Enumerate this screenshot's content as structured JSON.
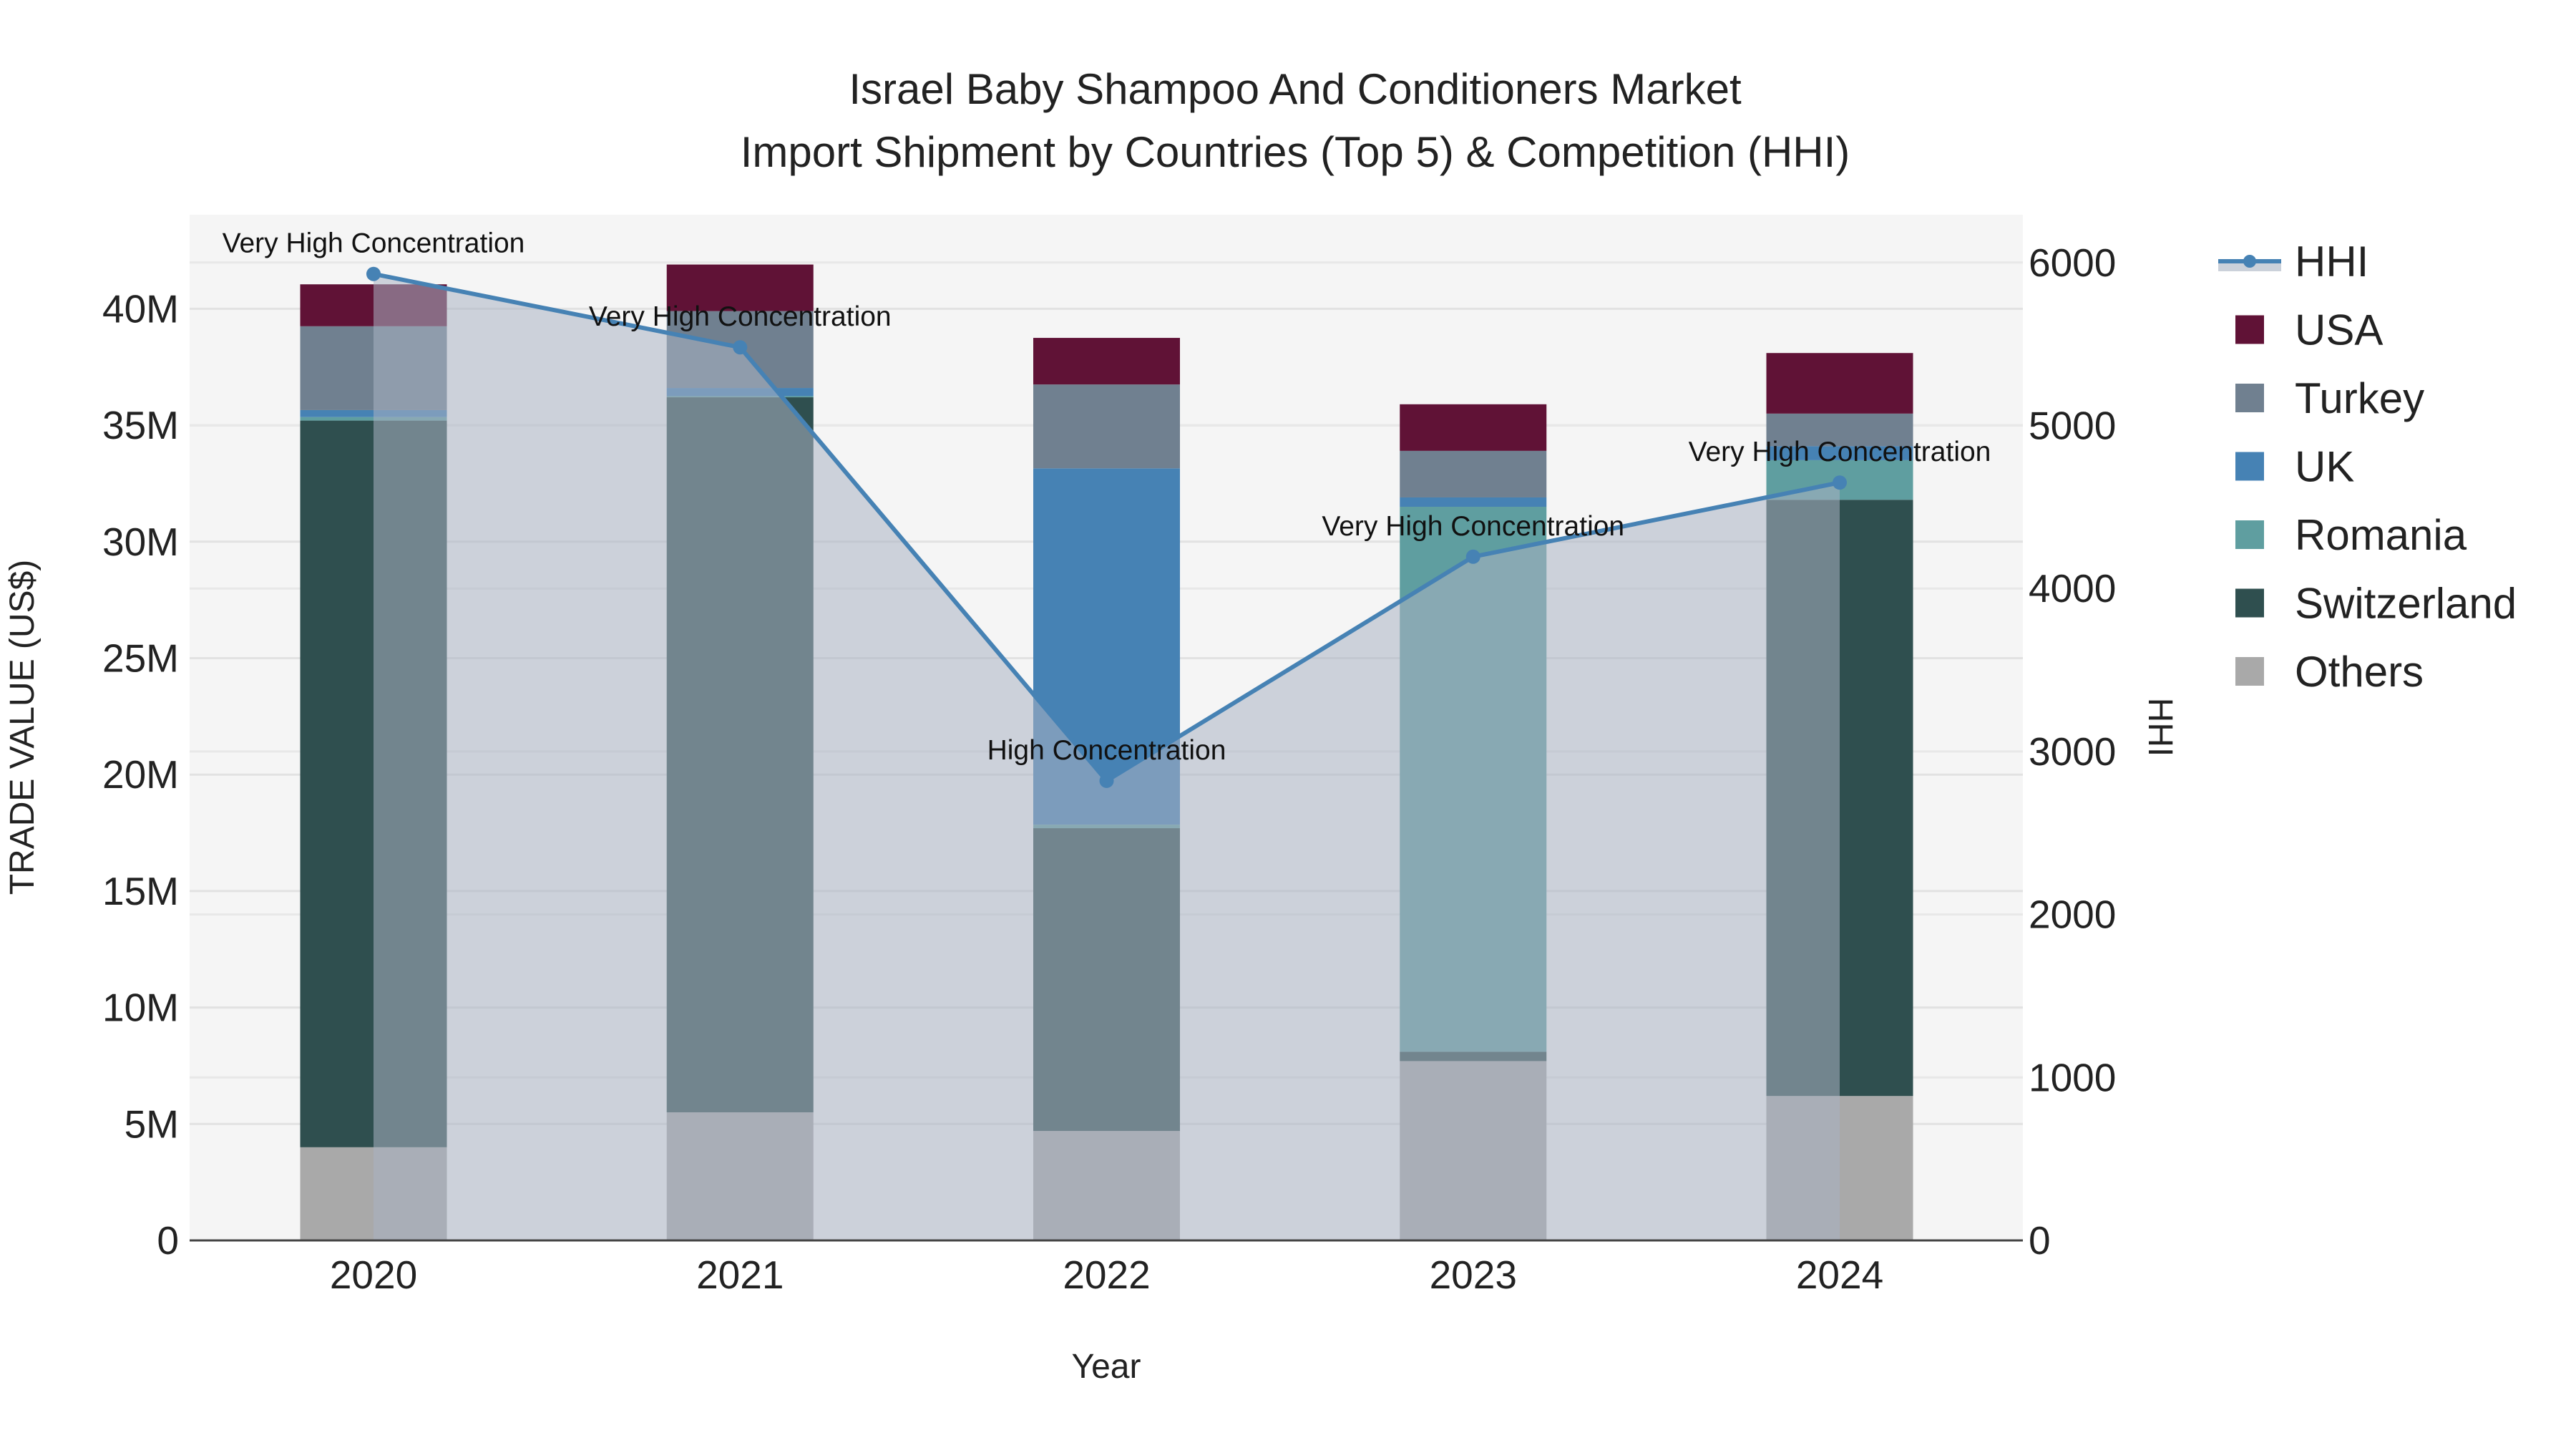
{
  "chart_data": {
    "type": "bar",
    "title": "Israel Baby Shampoo And Conditioners Market",
    "subtitle": "Import Shipment by Countries (Top 5) & Competition (HHI)",
    "xlabel": "Year",
    "ylabel": "TRADE VALUE (US$)",
    "y2label": "HHI",
    "categories": [
      "2020",
      "2021",
      "2022",
      "2023",
      "2024"
    ],
    "ylim": [
      0,
      44000000
    ],
    "y2lim": [
      0,
      6300
    ],
    "yticks": [
      0,
      5000000,
      10000000,
      15000000,
      20000000,
      25000000,
      30000000,
      35000000,
      40000000
    ],
    "ytick_labels": [
      "0",
      "5M",
      "10M",
      "15M",
      "20M",
      "25M",
      "30M",
      "35M",
      "40M"
    ],
    "y2ticks": [
      0,
      1000,
      2000,
      3000,
      4000,
      5000,
      6000
    ],
    "y2tick_labels": [
      "0",
      "1000",
      "2000",
      "3000",
      "4000",
      "5000",
      "6000"
    ],
    "grid": true,
    "legend_position": "right",
    "series": [
      {
        "name": "Others",
        "color": "#a9a9a9",
        "values": [
          4000000,
          5500000,
          4700000,
          7700000,
          6200000
        ]
      },
      {
        "name": "Switzerland",
        "color": "#2f4f4f",
        "values": [
          31200000,
          30700000,
          13000000,
          400000,
          25600000
        ]
      },
      {
        "name": "Romania",
        "color": "#5f9ea0",
        "values": [
          150000,
          50000,
          150000,
          23400000,
          1700000
        ]
      },
      {
        "name": "UK",
        "color": "#4682b4",
        "values": [
          300000,
          350000,
          15300000,
          400000,
          600000
        ]
      },
      {
        "name": "Turkey",
        "color": "#708090",
        "values": [
          3600000,
          3300000,
          3600000,
          2000000,
          1400000
        ]
      },
      {
        "name": "USA",
        "color": "#601236",
        "values": [
          1800000,
          2000000,
          2000000,
          2000000,
          2600000
        ]
      }
    ],
    "hhi": {
      "name": "HHI",
      "color": "#4682b4",
      "values": [
        5930,
        5480,
        2820,
        4195,
        4650
      ],
      "annotations": [
        "Very High Concentration",
        "Very High Concentration",
        "High Concentration",
        "Very High Concentration",
        "Very High Concentration"
      ]
    },
    "legend_order": [
      "HHI",
      "USA",
      "Turkey",
      "UK",
      "Romania",
      "Switzerland",
      "Others"
    ]
  }
}
